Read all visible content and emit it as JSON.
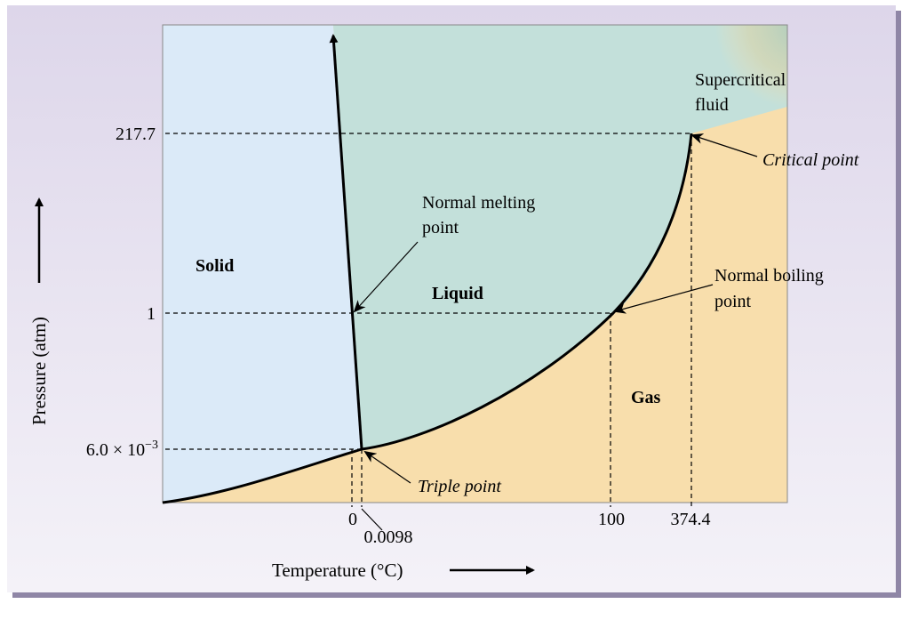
{
  "diagram": {
    "y_axis": {
      "label": "Pressure (atm)",
      "ticks": [
        "217.7",
        "1",
        "6.0 × 10",
        "−3"
      ]
    },
    "x_axis": {
      "label": "Temperature (°C)",
      "ticks": [
        "0",
        "0.0098",
        "100",
        "374.4"
      ]
    },
    "regions": {
      "solid": "Solid",
      "liquid": "Liquid",
      "gas": "Gas",
      "supercritical_line1": "Supercritical",
      "supercritical_line2": "fluid"
    },
    "annotations": {
      "melting_line1": "Normal melting",
      "melting_line2": "point",
      "boiling_line1": "Normal boiling",
      "boiling_line2": "point",
      "critical": "Critical point",
      "triple": "Triple point"
    },
    "colors": {
      "solid": "#dbeaf8",
      "liquid": "#c3e0da",
      "gas": "#f8deac",
      "outer_background": "#e2dcec"
    }
  }
}
